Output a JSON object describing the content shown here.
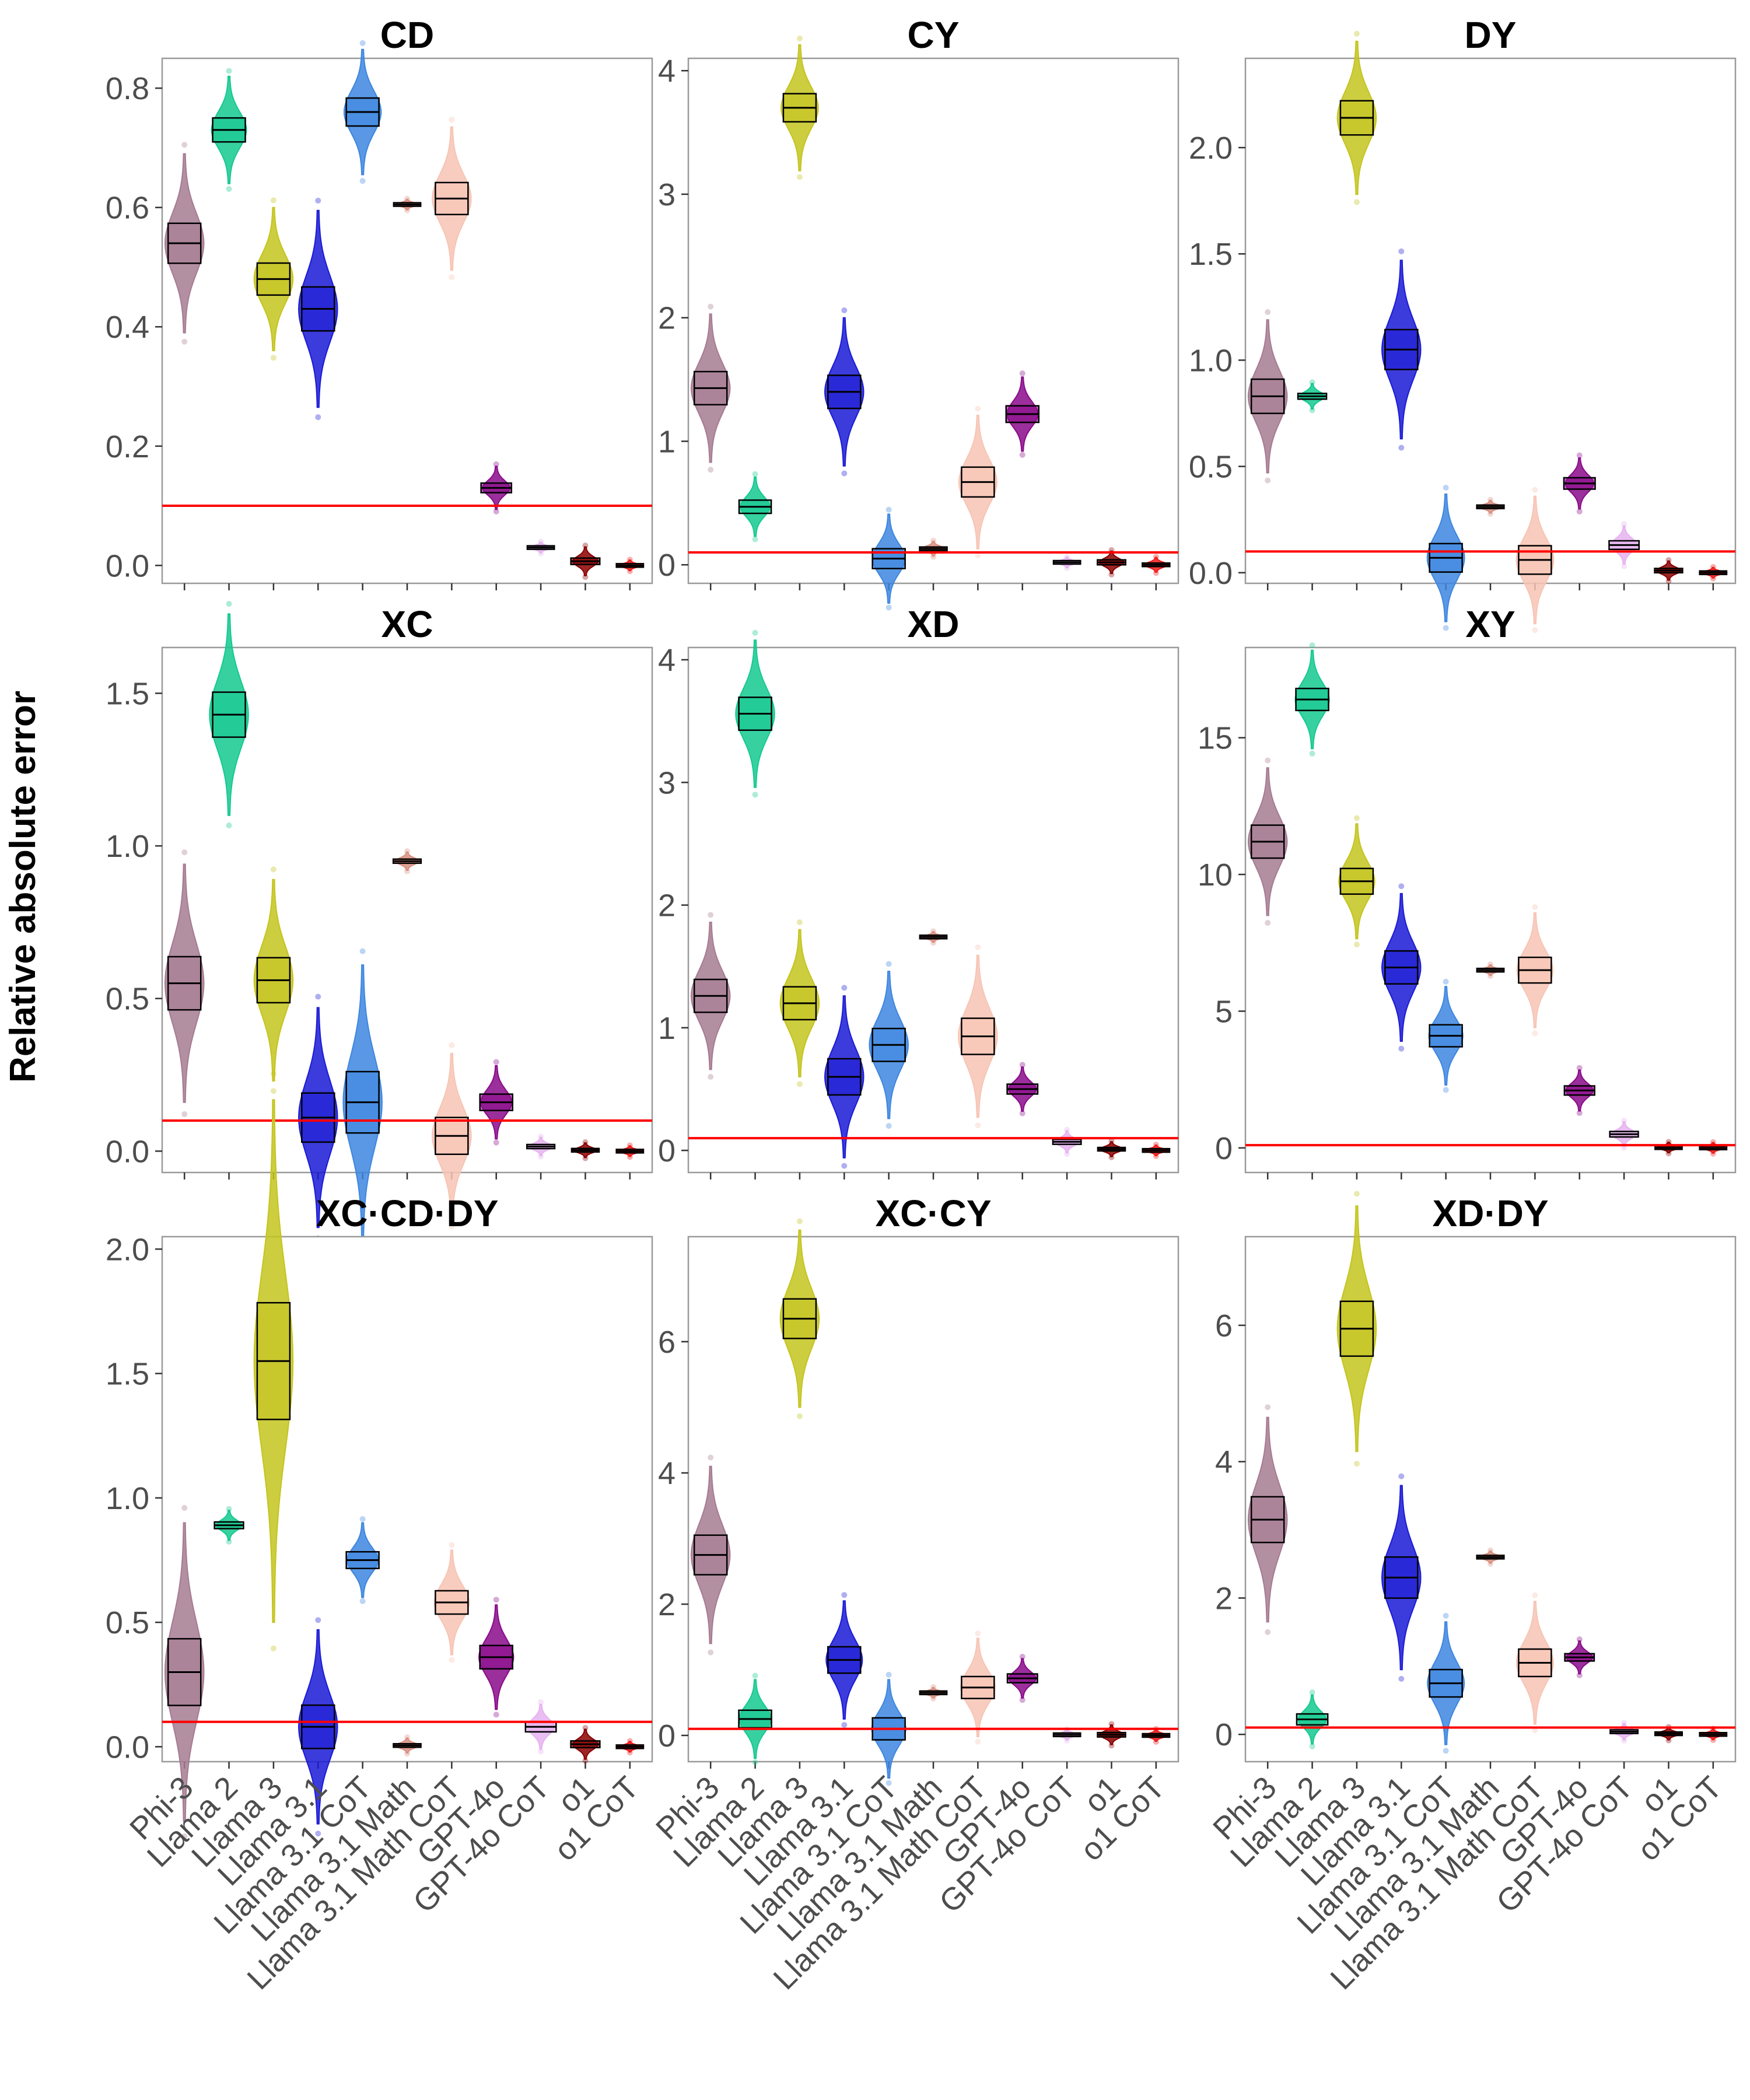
{
  "figure": {
    "ylabel": "Relative absolute error",
    "reference_line_value": 0.1,
    "reference_line_color": "#ff0000"
  },
  "categories": [
    "Phi-3",
    "Llama 2",
    "Llama 3",
    "Llama 3.1",
    "Llama 3.1 CoT",
    "Llama 3.1 Math",
    "Llama 3.1 Math CoT",
    "GPT-4o",
    "GPT-4o CoT",
    "o1",
    "o1 CoT"
  ],
  "colors": [
    "#a67b92",
    "#14c98f",
    "#c4c41e",
    "#1a1ad6",
    "#3d86e0",
    "#d98f80",
    "#f7c4b4",
    "#8a0a8a",
    "#e6b3f0",
    "#8b0000",
    "#ee1a1a"
  ],
  "chart_data": [
    {
      "type": "violin",
      "title": "CD",
      "ylim": [
        -0.03,
        0.85
      ],
      "ticks": [
        0.0,
        0.2,
        0.4,
        0.6,
        0.8
      ],
      "tick_labels": [
        "0.0",
        "0.2",
        "0.4",
        "0.6",
        "0.8"
      ],
      "medians": [
        0.54,
        0.73,
        0.48,
        0.43,
        0.76,
        0.605,
        0.615,
        0.13,
        0.03,
        0.007,
        0.0
      ],
      "spreads": [
        0.05,
        0.03,
        0.04,
        0.055,
        0.035,
        0.001,
        0.04,
        0.012,
        0.003,
        0.008,
        0.002
      ],
      "show_x_labels": false
    },
    {
      "type": "violin",
      "title": "CY",
      "ylim": [
        -0.15,
        4.1
      ],
      "ticks": [
        0,
        1,
        2,
        3,
        4
      ],
      "tick_labels": [
        "0",
        "1",
        "2",
        "3",
        "4"
      ],
      "medians": [
        1.43,
        0.47,
        3.7,
        1.4,
        0.05,
        0.13,
        0.67,
        1.22,
        0.02,
        0.02,
        0.0
      ],
      "spreads": [
        0.2,
        0.08,
        0.17,
        0.2,
        0.12,
        0.02,
        0.18,
        0.1,
        0.01,
        0.03,
        0.02
      ],
      "show_x_labels": false
    },
    {
      "type": "violin",
      "title": "DY",
      "ylim": [
        -0.05,
        2.42
      ],
      "ticks": [
        0.0,
        0.5,
        1.0,
        1.5,
        2.0
      ],
      "tick_labels": [
        "0.0",
        "0.5",
        "1.0",
        "1.5",
        "2.0"
      ],
      "medians": [
        0.83,
        0.83,
        2.14,
        1.05,
        0.07,
        0.31,
        0.06,
        0.42,
        0.13,
        0.01,
        0.0
      ],
      "spreads": [
        0.12,
        0.02,
        0.12,
        0.14,
        0.1,
        0.01,
        0.1,
        0.04,
        0.03,
        0.015,
        0.005
      ],
      "show_x_labels": false
    },
    {
      "type": "violin",
      "title": "XC",
      "ylim": [
        -0.07,
        1.65
      ],
      "ticks": [
        0.0,
        0.5,
        1.0,
        1.5
      ],
      "tick_labels": [
        "0.0",
        "0.5",
        "1.0",
        "1.5"
      ],
      "medians": [
        0.55,
        1.43,
        0.56,
        0.11,
        0.16,
        0.95,
        0.05,
        0.16,
        0.015,
        0.003,
        0.0
      ],
      "spreads": [
        0.13,
        0.11,
        0.11,
        0.12,
        0.15,
        0.01,
        0.09,
        0.04,
        0.01,
        0.008,
        0.003
      ],
      "show_x_labels": false
    },
    {
      "type": "violin",
      "title": "XD",
      "ylim": [
        -0.18,
        4.1
      ],
      "ticks": [
        0,
        1,
        2,
        3,
        4
      ],
      "tick_labels": [
        "0",
        "1",
        "2",
        "3",
        "4"
      ],
      "medians": [
        1.26,
        3.56,
        1.2,
        0.6,
        0.86,
        1.74,
        0.93,
        0.5,
        0.07,
        0.01,
        0.0
      ],
      "spreads": [
        0.2,
        0.2,
        0.2,
        0.22,
        0.2,
        0.01,
        0.22,
        0.06,
        0.03,
        0.02,
        0.01
      ],
      "show_x_labels": false
    },
    {
      "type": "violin",
      "title": "XY",
      "ylim": [
        -0.9,
        18.3
      ],
      "ticks": [
        0,
        5,
        10,
        15
      ],
      "tick_labels": [
        "0",
        "5",
        "10",
        "15"
      ],
      "medians": [
        11.2,
        16.4,
        9.75,
        6.6,
        4.1,
        6.5,
        6.5,
        2.1,
        0.5,
        0.01,
        0.0
      ],
      "spreads": [
        0.9,
        0.6,
        0.7,
        0.9,
        0.6,
        0.05,
        0.7,
        0.25,
        0.15,
        0.05,
        0.03
      ],
      "show_x_labels": false
    },
    {
      "type": "violin",
      "title": "XC·CD·DY",
      "ylim": [
        -0.06,
        2.05
      ],
      "ticks": [
        0.0,
        0.5,
        1.0,
        1.5,
        2.0
      ],
      "tick_labels": [
        "0.0",
        "0.5",
        "1.0",
        "1.5",
        "2.0"
      ],
      "medians": [
        0.3,
        0.89,
        1.55,
        0.08,
        0.75,
        0.005,
        0.58,
        0.36,
        0.08,
        0.01,
        0.0
      ],
      "spreads": [
        0.2,
        0.02,
        0.35,
        0.13,
        0.05,
        0.01,
        0.07,
        0.07,
        0.03,
        0.02,
        0.005
      ],
      "show_x_labels": true
    },
    {
      "type": "violin",
      "title": "XC·CY",
      "ylim": [
        -0.4,
        7.6
      ],
      "ticks": [
        0,
        2,
        4,
        6
      ],
      "tick_labels": [
        "0",
        "2",
        "4",
        "6"
      ],
      "medians": [
        2.75,
        0.25,
        6.35,
        1.15,
        0.1,
        0.65,
        0.73,
        0.87,
        0.01,
        0.01,
        0.0
      ],
      "spreads": [
        0.45,
        0.2,
        0.45,
        0.3,
        0.25,
        0.02,
        0.25,
        0.1,
        0.02,
        0.05,
        0.03
      ],
      "show_x_labels": true
    },
    {
      "type": "violin",
      "title": "XD·DY",
      "ylim": [
        -0.4,
        7.3
      ],
      "ticks": [
        0,
        2,
        4,
        6
      ],
      "tick_labels": [
        "0",
        "2",
        "4",
        "6"
      ],
      "medians": [
        3.15,
        0.22,
        5.95,
        2.3,
        0.75,
        2.6,
        1.05,
        1.13,
        0.04,
        0.01,
        0.0
      ],
      "spreads": [
        0.5,
        0.12,
        0.6,
        0.45,
        0.3,
        0.03,
        0.3,
        0.08,
        0.04,
        0.03,
        0.02
      ],
      "show_x_labels": true
    }
  ]
}
